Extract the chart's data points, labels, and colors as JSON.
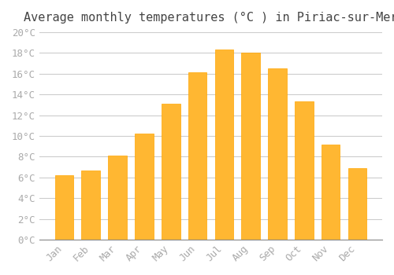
{
  "title": "Average monthly temperatures (°C ) in Piriac-sur-Mer",
  "months": [
    "Jan",
    "Feb",
    "Mar",
    "Apr",
    "May",
    "Jun",
    "Jul",
    "Aug",
    "Sep",
    "Oct",
    "Nov",
    "Dec"
  ],
  "temperatures": [
    6.2,
    6.7,
    8.1,
    10.2,
    13.1,
    16.1,
    18.3,
    18.0,
    16.5,
    13.3,
    9.2,
    6.9
  ],
  "bar_color": "#FFA500",
  "bar_edge_color": "#FFB732",
  "background_color": "#FFFFFF",
  "grid_color": "#CCCCCC",
  "tick_label_color": "#AAAAAA",
  "title_color": "#444444",
  "ylim": [
    0,
    20
  ],
  "yticks": [
    0,
    2,
    4,
    6,
    8,
    10,
    12,
    14,
    16,
    18,
    20
  ],
  "title_fontsize": 11,
  "tick_fontsize": 9,
  "figsize": [
    5.0,
    3.5
  ],
  "dpi": 100
}
